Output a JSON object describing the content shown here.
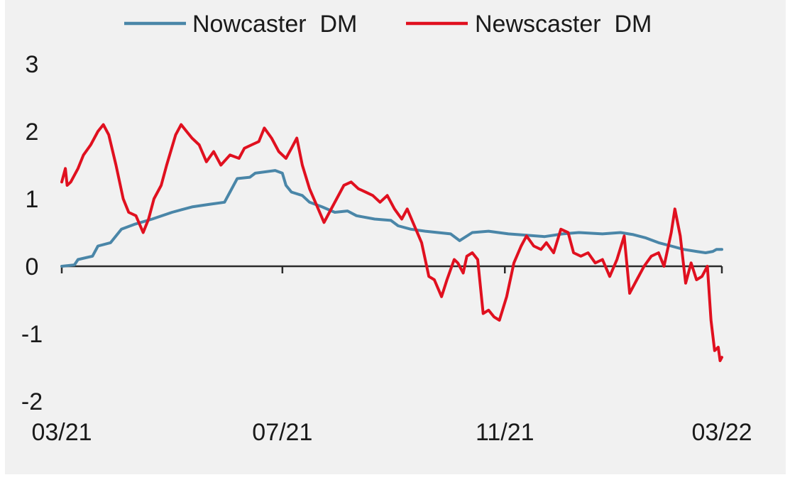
{
  "chart_data": {
    "type": "line",
    "title": "",
    "xlabel": "",
    "ylabel": "",
    "ylim": [
      -2,
      3
    ],
    "yticks": [
      3,
      2,
      1,
      0,
      -1,
      -2
    ],
    "ytick_labels": [
      "3",
      "2",
      "1",
      "0",
      "-1",
      "-2"
    ],
    "x_start": "2021-03-01",
    "x_end": "2022-03-01",
    "xticks": [
      {
        "label": "03/21",
        "date": "2021-03-01"
      },
      {
        "label": "07/21",
        "date": "2021-07-01"
      },
      {
        "label": "11/21",
        "date": "2021-11-01"
      },
      {
        "label": "03/22",
        "date": "2022-03-01"
      }
    ],
    "legend": {
      "position": "top",
      "entries": [
        "Nowcaster  DM",
        "Newscaster  DM"
      ]
    },
    "grid": false,
    "series": [
      {
        "name": "Nowcaster  DM",
        "color": "#4a86a8",
        "points": [
          [
            "2021-03-01",
            0.0
          ],
          [
            "2021-03-08",
            0.02
          ],
          [
            "2021-03-10",
            0.1
          ],
          [
            "2021-03-18",
            0.15
          ],
          [
            "2021-03-21",
            0.3
          ],
          [
            "2021-03-28",
            0.35
          ],
          [
            "2021-04-03",
            0.55
          ],
          [
            "2021-04-10",
            0.62
          ],
          [
            "2021-04-20",
            0.7
          ],
          [
            "2021-05-01",
            0.8
          ],
          [
            "2021-05-12",
            0.88
          ],
          [
            "2021-05-22",
            0.92
          ],
          [
            "2021-05-30",
            0.95
          ],
          [
            "2021-06-02",
            1.1
          ],
          [
            "2021-06-06",
            1.3
          ],
          [
            "2021-06-13",
            1.32
          ],
          [
            "2021-06-16",
            1.38
          ],
          [
            "2021-06-27",
            1.42
          ],
          [
            "2021-07-01",
            1.38
          ],
          [
            "2021-07-03",
            1.2
          ],
          [
            "2021-07-06",
            1.1
          ],
          [
            "2021-07-12",
            1.05
          ],
          [
            "2021-07-16",
            0.95
          ],
          [
            "2021-07-23",
            0.88
          ],
          [
            "2021-07-30",
            0.8
          ],
          [
            "2021-08-06",
            0.82
          ],
          [
            "2021-08-11",
            0.75
          ],
          [
            "2021-08-21",
            0.7
          ],
          [
            "2021-08-30",
            0.68
          ],
          [
            "2021-09-03",
            0.6
          ],
          [
            "2021-09-10",
            0.55
          ],
          [
            "2021-09-18",
            0.52
          ],
          [
            "2021-09-25",
            0.5
          ],
          [
            "2021-10-02",
            0.48
          ],
          [
            "2021-10-07",
            0.38
          ],
          [
            "2021-10-14",
            0.5
          ],
          [
            "2021-10-23",
            0.52
          ],
          [
            "2021-11-03",
            0.48
          ],
          [
            "2021-11-13",
            0.46
          ],
          [
            "2021-11-23",
            0.44
          ],
          [
            "2021-12-03",
            0.48
          ],
          [
            "2021-12-12",
            0.5
          ],
          [
            "2021-12-25",
            0.48
          ],
          [
            "2022-01-04",
            0.5
          ],
          [
            "2022-01-11",
            0.47
          ],
          [
            "2022-01-18",
            0.42
          ],
          [
            "2022-01-25",
            0.35
          ],
          [
            "2022-02-01",
            0.3
          ],
          [
            "2022-02-08",
            0.25
          ],
          [
            "2022-02-15",
            0.22
          ],
          [
            "2022-02-20",
            0.2
          ],
          [
            "2022-02-24",
            0.22
          ],
          [
            "2022-02-26",
            0.25
          ],
          [
            "2022-03-01",
            0.25
          ]
        ]
      },
      {
        "name": "Newscaster  DM",
        "color": "#e0101f",
        "points": [
          [
            "2021-03-01",
            1.25
          ],
          [
            "2021-03-03",
            1.45
          ],
          [
            "2021-03-04",
            1.2
          ],
          [
            "2021-03-06",
            1.25
          ],
          [
            "2021-03-10",
            1.45
          ],
          [
            "2021-03-13",
            1.65
          ],
          [
            "2021-03-17",
            1.8
          ],
          [
            "2021-03-21",
            2.0
          ],
          [
            "2021-03-24",
            2.1
          ],
          [
            "2021-03-27",
            1.95
          ],
          [
            "2021-03-31",
            1.5
          ],
          [
            "2021-04-04",
            1.0
          ],
          [
            "2021-04-07",
            0.8
          ],
          [
            "2021-04-11",
            0.75
          ],
          [
            "2021-04-15",
            0.5
          ],
          [
            "2021-04-18",
            0.7
          ],
          [
            "2021-04-21",
            1.0
          ],
          [
            "2021-04-25",
            1.2
          ],
          [
            "2021-04-28",
            1.5
          ],
          [
            "2021-05-03",
            1.95
          ],
          [
            "2021-05-06",
            2.1
          ],
          [
            "2021-05-09",
            2.0
          ],
          [
            "2021-05-12",
            1.9
          ],
          [
            "2021-05-16",
            1.8
          ],
          [
            "2021-05-20",
            1.55
          ],
          [
            "2021-05-24",
            1.7
          ],
          [
            "2021-05-28",
            1.5
          ],
          [
            "2021-06-02",
            1.65
          ],
          [
            "2021-06-07",
            1.6
          ],
          [
            "2021-06-10",
            1.75
          ],
          [
            "2021-06-14",
            1.8
          ],
          [
            "2021-06-18",
            1.85
          ],
          [
            "2021-06-21",
            2.05
          ],
          [
            "2021-06-25",
            1.9
          ],
          [
            "2021-06-29",
            1.7
          ],
          [
            "2021-07-03",
            1.6
          ],
          [
            "2021-07-06",
            1.75
          ],
          [
            "2021-07-09",
            1.9
          ],
          [
            "2021-07-12",
            1.5
          ],
          [
            "2021-07-16",
            1.15
          ],
          [
            "2021-07-20",
            0.9
          ],
          [
            "2021-07-24",
            0.65
          ],
          [
            "2021-07-27",
            0.8
          ],
          [
            "2021-07-31",
            1.0
          ],
          [
            "2021-08-04",
            1.2
          ],
          [
            "2021-08-08",
            1.25
          ],
          [
            "2021-08-12",
            1.15
          ],
          [
            "2021-08-16",
            1.1
          ],
          [
            "2021-08-20",
            1.05
          ],
          [
            "2021-08-24",
            0.95
          ],
          [
            "2021-08-28",
            1.05
          ],
          [
            "2021-09-01",
            0.85
          ],
          [
            "2021-09-05",
            0.7
          ],
          [
            "2021-09-08",
            0.85
          ],
          [
            "2021-09-12",
            0.6
          ],
          [
            "2021-09-16",
            0.35
          ],
          [
            "2021-09-20",
            -0.15
          ],
          [
            "2021-09-23",
            -0.2
          ],
          [
            "2021-09-27",
            -0.45
          ],
          [
            "2021-09-30",
            -0.2
          ],
          [
            "2021-10-04",
            0.1
          ],
          [
            "2021-10-06",
            0.05
          ],
          [
            "2021-10-09",
            -0.1
          ],
          [
            "2021-10-11",
            0.15
          ],
          [
            "2021-10-14",
            0.2
          ],
          [
            "2021-10-17",
            0.1
          ],
          [
            "2021-10-20",
            -0.7
          ],
          [
            "2021-10-23",
            -0.65
          ],
          [
            "2021-10-26",
            -0.75
          ],
          [
            "2021-10-29",
            -0.8
          ],
          [
            "2021-11-02",
            -0.45
          ],
          [
            "2021-11-06",
            0.05
          ],
          [
            "2021-11-10",
            0.3
          ],
          [
            "2021-11-13",
            0.45
          ],
          [
            "2021-11-17",
            0.3
          ],
          [
            "2021-11-21",
            0.25
          ],
          [
            "2021-11-24",
            0.35
          ],
          [
            "2021-11-28",
            0.2
          ],
          [
            "2021-12-02",
            0.55
          ],
          [
            "2021-12-06",
            0.5
          ],
          [
            "2021-12-09",
            0.2
          ],
          [
            "2021-12-13",
            0.15
          ],
          [
            "2021-12-17",
            0.2
          ],
          [
            "2021-12-21",
            0.05
          ],
          [
            "2021-12-25",
            0.1
          ],
          [
            "2021-12-29",
            -0.15
          ],
          [
            "2022-01-02",
            0.1
          ],
          [
            "2022-01-06",
            0.45
          ],
          [
            "2022-01-09",
            -0.4
          ],
          [
            "2022-01-13",
            -0.2
          ],
          [
            "2022-01-17",
            0.0
          ],
          [
            "2022-01-21",
            0.15
          ],
          [
            "2022-01-25",
            0.2
          ],
          [
            "2022-01-28",
            0.0
          ],
          [
            "2022-02-01",
            0.5
          ],
          [
            "2022-02-03",
            0.85
          ],
          [
            "2022-02-06",
            0.45
          ],
          [
            "2022-02-09",
            -0.25
          ],
          [
            "2022-02-12",
            0.05
          ],
          [
            "2022-02-15",
            -0.2
          ],
          [
            "2022-02-18",
            -0.15
          ],
          [
            "2022-02-21",
            0.0
          ],
          [
            "2022-02-23",
            -0.8
          ],
          [
            "2022-02-25",
            -1.25
          ],
          [
            "2022-02-27",
            -1.2
          ],
          [
            "2022-02-28",
            -1.4
          ],
          [
            "2022-03-01",
            -1.35
          ]
        ]
      }
    ]
  }
}
